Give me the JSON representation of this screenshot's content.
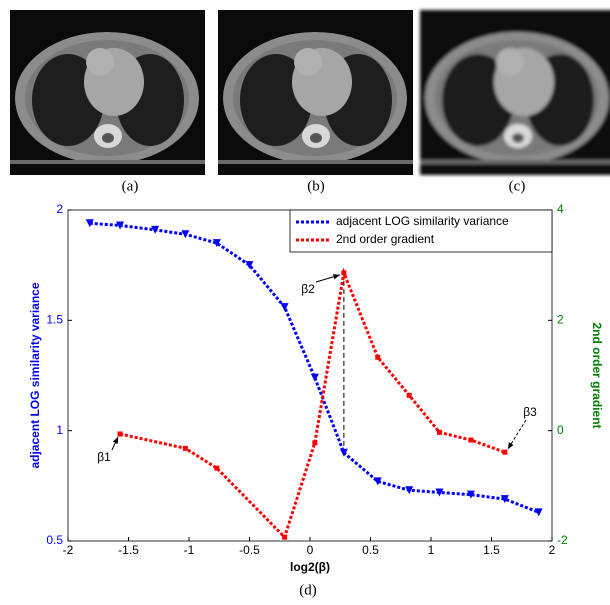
{
  "panels": [
    {
      "caption": "(a)"
    },
    {
      "caption": "(b)"
    },
    {
      "caption": "(c)"
    }
  ],
  "chart_caption": "(d)",
  "chart_data": {
    "type": "line",
    "xlabel": "log2(β)",
    "ylabel": "adjacent LOG  similarity variance",
    "y2label": "2nd order gradient",
    "xlim": [
      -2,
      2
    ],
    "xticks": [
      -2,
      -1.5,
      -1,
      -0.5,
      0,
      0.5,
      1,
      1.5,
      2
    ],
    "ylim": [
      0.5,
      2
    ],
    "yticks": [
      0.5,
      1,
      1.5,
      2
    ],
    "y2lim": [
      -2,
      4
    ],
    "y2ticks": [
      -2,
      0,
      2,
      4
    ],
    "legend": "upper right",
    "annotations": [
      "β1",
      "β2",
      "β3"
    ],
    "series": [
      {
        "name": "adjacent LOG similarity variance",
        "color": "#0000ff",
        "x": [
          -1.82,
          -1.57,
          -1.28,
          -1.03,
          -0.77,
          -0.5,
          -0.21,
          0.04,
          0.28,
          0.56,
          0.82,
          1.07,
          1.33,
          1.61,
          1.89
        ],
        "values": [
          1.94,
          1.93,
          1.91,
          1.89,
          1.85,
          1.75,
          1.56,
          1.24,
          0.9,
          0.77,
          0.73,
          0.72,
          0.71,
          0.69,
          0.63
        ]
      },
      {
        "name": "2nd order gradient",
        "color": "#ff0000",
        "axis": "y2",
        "x": [
          -1.57,
          -1.03,
          -0.77,
          -0.21,
          0.04,
          0.28,
          0.56,
          0.82,
          1.07,
          1.33,
          1.61
        ],
        "values": [
          -0.06,
          -0.32,
          -0.68,
          -1.93,
          -0.22,
          2.86,
          1.33,
          0.64,
          -0.03,
          -0.17,
          -0.39
        ]
      }
    ]
  }
}
